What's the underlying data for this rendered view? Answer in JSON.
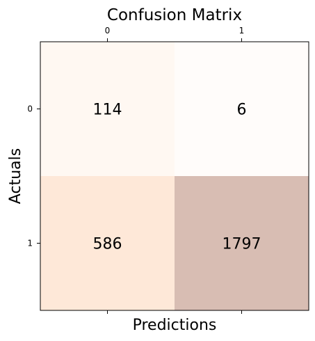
{
  "chart_data": {
    "type": "heatmap",
    "title": "Confusion Matrix",
    "xlabel": "Predictions",
    "ylabel": "Actuals",
    "x_tick_labels": [
      "0",
      "1"
    ],
    "y_tick_labels": [
      "0",
      "1"
    ],
    "x_tick_position": "top",
    "matrix": [
      [
        114,
        6
      ],
      [
        586,
        1797
      ]
    ],
    "value_labels": [
      [
        "114",
        "6"
      ],
      [
        "586",
        "1797"
      ]
    ],
    "colormap": "Oranges",
    "cell_colors": [
      [
        "#fff8f2",
        "#fffcfa"
      ],
      [
        "#fee8d8",
        "#d8bdb3"
      ]
    ],
    "grid": false
  }
}
